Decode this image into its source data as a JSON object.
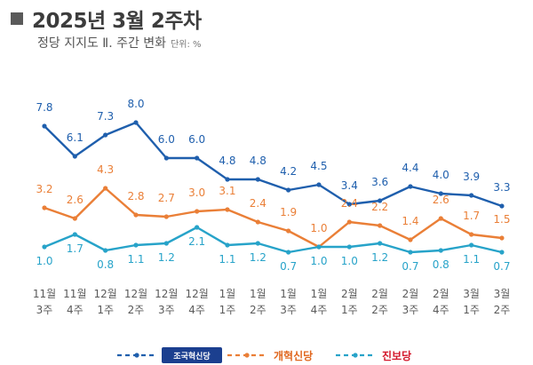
{
  "title": "2025년 3월 2주차",
  "subtitle": "정당 지지도 Ⅱ. 주간 변화",
  "unit_label": "단위: %",
  "colors": {
    "blue": "#1f5fad",
    "orange": "#ea7f37",
    "teal": "#27a3c9",
    "axis_text": "#5a5a5a"
  },
  "chart_data": {
    "type": "line",
    "categories": [
      [
        "11월",
        "3주"
      ],
      [
        "11월",
        "4주"
      ],
      [
        "12월",
        "1주"
      ],
      [
        "12월",
        "2주"
      ],
      [
        "12월",
        "3주"
      ],
      [
        "12월",
        "4주"
      ],
      [
        "1월",
        "1주"
      ],
      [
        "1월",
        "2주"
      ],
      [
        "1월",
        "3주"
      ],
      [
        "1월",
        "4주"
      ],
      [
        "2월",
        "1주"
      ],
      [
        "2월",
        "2주"
      ],
      [
        "2월",
        "3주"
      ],
      [
        "2월",
        "4주"
      ],
      [
        "3월",
        "1주"
      ],
      [
        "3월",
        "2주"
      ]
    ],
    "series": [
      {
        "name": "조국혁신당",
        "color": "#1f5fad",
        "values": [
          7.8,
          6.1,
          7.3,
          8.0,
          6.0,
          6.0,
          4.8,
          4.8,
          4.2,
          4.5,
          3.4,
          3.6,
          4.4,
          4.0,
          3.9,
          3.3
        ]
      },
      {
        "name": "개혁신당",
        "color": "#ea7f37",
        "values": [
          3.2,
          2.6,
          4.3,
          2.8,
          2.7,
          3.0,
          3.1,
          2.4,
          1.9,
          1.0,
          2.4,
          2.2,
          1.4,
          2.6,
          1.7,
          1.5
        ]
      },
      {
        "name": "진보당",
        "color": "#27a3c9",
        "values": [
          1.0,
          1.7,
          0.8,
          1.1,
          1.2,
          2.1,
          1.1,
          1.2,
          0.7,
          1.0,
          1.0,
          1.2,
          0.7,
          0.8,
          1.1,
          0.7
        ]
      }
    ],
    "legend_position": "bottom",
    "grid": false
  }
}
